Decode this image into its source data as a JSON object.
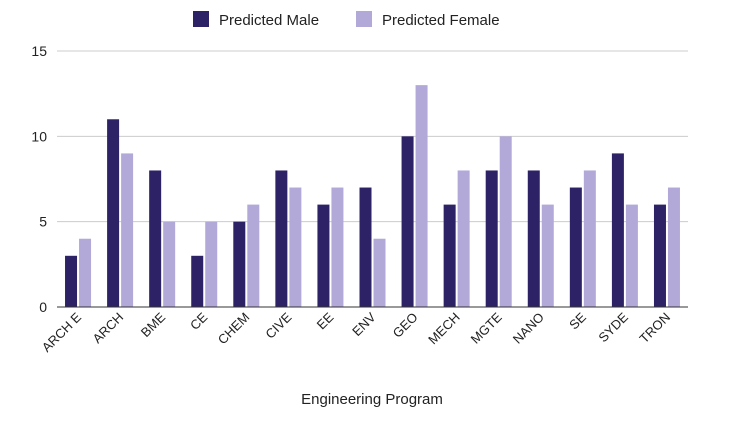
{
  "chart_data": {
    "type": "bar",
    "title": "",
    "xlabel": "Engineering Program",
    "ylabel": "",
    "ylim": [
      0,
      15
    ],
    "yticks": [
      0,
      5,
      10,
      15
    ],
    "grid": true,
    "legend_position": "top-center",
    "categories": [
      "ARCH E",
      "ARCH",
      "BME",
      "CE",
      "CHEM",
      "CIVE",
      "EE",
      "ENV",
      "GEO",
      "MECH",
      "MGTE",
      "NANO",
      "SE",
      "SYDE",
      "TRON"
    ],
    "series": [
      {
        "name": "Predicted Male",
        "color": "#2e2266",
        "values": [
          3,
          11,
          8,
          3,
          5,
          8,
          6,
          7,
          10,
          6,
          8,
          8,
          7,
          9,
          6
        ]
      },
      {
        "name": "Predicted Female",
        "color": "#b3a9d9",
        "values": [
          4,
          9,
          5,
          5,
          6,
          7,
          7,
          4,
          13,
          8,
          10,
          6,
          8,
          6,
          7
        ]
      }
    ]
  }
}
